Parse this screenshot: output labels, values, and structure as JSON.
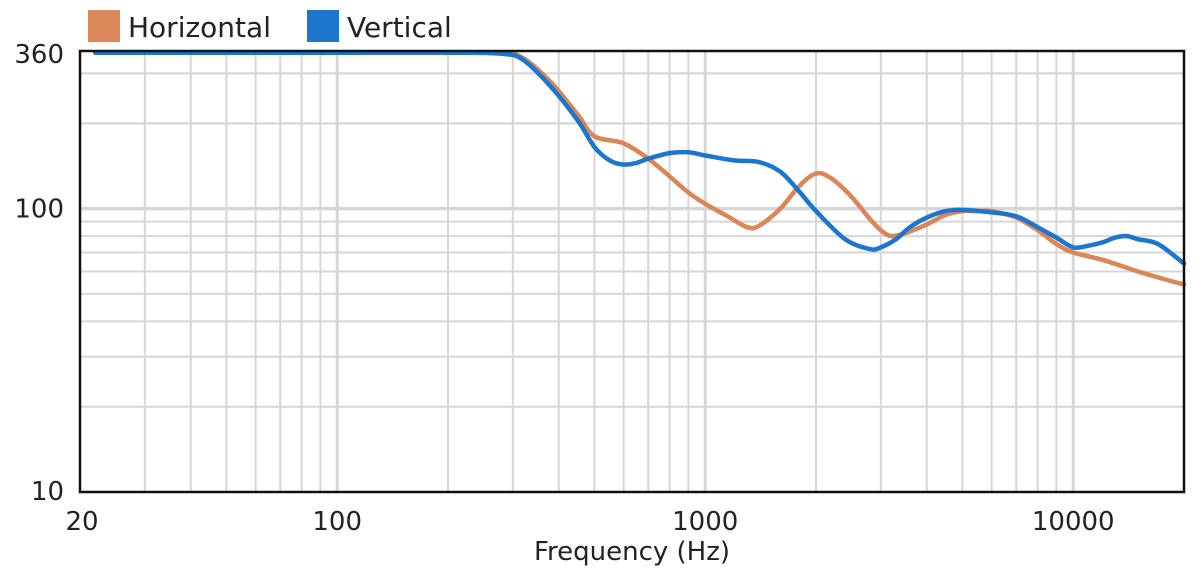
{
  "chart_data": {
    "type": "line",
    "title": "",
    "xlabel": "Frequency (Hz)",
    "ylabel": "",
    "x_scale": "log",
    "y_scale": "log",
    "xlim": [
      20,
      20000
    ],
    "ylim": [
      10,
      360
    ],
    "x_ticks": [
      {
        "value": 20,
        "label": "20"
      },
      {
        "value": 100,
        "label": "100"
      },
      {
        "value": 1000,
        "label": "1000"
      },
      {
        "value": 10000,
        "label": "10000"
      }
    ],
    "y_ticks": [
      {
        "value": 10,
        "label": "10"
      },
      {
        "value": 100,
        "label": "100"
      },
      {
        "value": 360,
        "label": "360"
      }
    ],
    "grid": true,
    "legend": "top-left",
    "series": [
      {
        "name": "Horizontal",
        "color": "#DA8657",
        "x": [
          22,
          100,
          200,
          280,
          320,
          380,
          450,
          500,
          600,
          700,
          800,
          900,
          1000,
          1150,
          1300,
          1400,
          1600,
          1800,
          2000,
          2200,
          2500,
          2800,
          3000,
          3200,
          3500,
          4000,
          4500,
          5000,
          5500,
          6000,
          7000,
          8000,
          9000,
          10000,
          12000,
          15000,
          18000,
          20000
        ],
        "y": [
          355,
          355,
          355,
          355,
          340,
          280,
          215,
          180,
          170,
          150,
          130,
          114,
          104,
          94,
          86,
          87,
          100,
          120,
          133,
          128,
          110,
          92,
          84,
          80,
          82,
          88,
          95,
          98,
          98,
          98,
          93,
          84,
          75,
          70,
          66,
          60,
          56,
          54
        ]
      },
      {
        "name": "Vertical",
        "color": "#1C76CE",
        "x": [
          22,
          100,
          200,
          280,
          320,
          380,
          450,
          500,
          550,
          600,
          650,
          700,
          800,
          900,
          1000,
          1200,
          1400,
          1600,
          1800,
          2000,
          2400,
          2800,
          3000,
          3300,
          3600,
          4000,
          4500,
          5000,
          6000,
          7000,
          8000,
          9000,
          10000,
          11000,
          12000,
          13000,
          14000,
          15000,
          17000,
          20000
        ],
        "y": [
          355,
          355,
          355,
          352,
          335,
          270,
          205,
          165,
          148,
          143,
          145,
          150,
          157,
          158,
          154,
          148,
          146,
          135,
          115,
          98,
          78,
          72,
          73,
          78,
          86,
          93,
          98,
          99,
          97,
          94,
          86,
          79,
          73,
          74,
          76,
          79,
          80,
          78,
          75,
          64
        ]
      }
    ]
  }
}
